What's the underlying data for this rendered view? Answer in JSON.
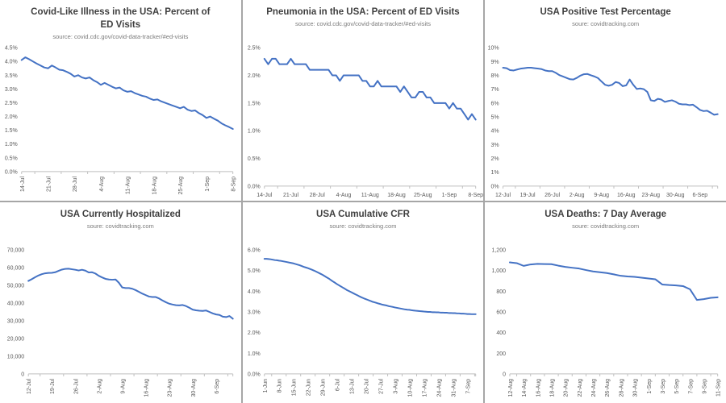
{
  "theme": {
    "line_color": "#4472C4",
    "axis_color": "#BFBFBF",
    "tick_text_color": "#595959",
    "title_color": "#3F3F3F",
    "source_color": "#7A7A7A",
    "divider_color": "#A6A6A6",
    "background": "#FFFFFF"
  },
  "chart_data": [
    {
      "type": "line",
      "title": "Covid-Like Illness in the USA: Percent of ED Visits",
      "source": "source: covid.cdc.gov/covid-data-tracker/#ed-visits",
      "x_ticks": [
        "14-Jul",
        "21-Jul",
        "28-Jul",
        "4-Aug",
        "11-Aug",
        "18-Aug",
        "25-Aug",
        "1-Sep",
        "8-Sep"
      ],
      "x_step": 7,
      "x_rotated": true,
      "y_ticks": [
        "0.0%",
        "0.5%",
        "1.0%",
        "1.5%",
        "2.0%",
        "2.5%",
        "3.0%",
        "3.5%",
        "4.0%",
        "4.5%"
      ],
      "ylim": [
        0,
        4.5
      ],
      "values": [
        4.05,
        4.15,
        4.08,
        4.0,
        3.92,
        3.85,
        3.78,
        3.75,
        3.85,
        3.78,
        3.7,
        3.68,
        3.62,
        3.55,
        3.45,
        3.5,
        3.42,
        3.38,
        3.42,
        3.32,
        3.25,
        3.15,
        3.22,
        3.15,
        3.08,
        3.02,
        3.05,
        2.95,
        2.9,
        2.92,
        2.85,
        2.8,
        2.75,
        2.72,
        2.65,
        2.6,
        2.62,
        2.55,
        2.5,
        2.45,
        2.4,
        2.35,
        2.3,
        2.35,
        2.25,
        2.2,
        2.22,
        2.12,
        2.05,
        1.95,
        2.0,
        1.92,
        1.85,
        1.75,
        1.68,
        1.62,
        1.55
      ]
    },
    {
      "type": "line",
      "title": "Pneumonia in the USA: Percent of ED Visits",
      "source": "source: covid.cdc.gov/covid-data-tracker/#ed-visits",
      "x_ticks": [
        "14-Jul",
        "21-Jul",
        "28-Jul",
        "4-Aug",
        "11-Aug",
        "18-Aug",
        "25-Aug",
        "1-Sep",
        "8-Sep"
      ],
      "x_step": 7,
      "x_rotated": false,
      "y_ticks": [
        "0.0%",
        "0.5%",
        "1.0%",
        "1.5%",
        "2.0%",
        "2.5%"
      ],
      "ylim": [
        0,
        2.5
      ],
      "values": [
        2.3,
        2.2,
        2.3,
        2.3,
        2.2,
        2.2,
        2.2,
        2.3,
        2.2,
        2.2,
        2.2,
        2.2,
        2.1,
        2.1,
        2.1,
        2.1,
        2.1,
        2.1,
        2.0,
        2.0,
        1.9,
        2.0,
        2.0,
        2.0,
        2.0,
        2.0,
        1.9,
        1.9,
        1.8,
        1.8,
        1.9,
        1.8,
        1.8,
        1.8,
        1.8,
        1.8,
        1.7,
        1.8,
        1.7,
        1.6,
        1.6,
        1.7,
        1.7,
        1.6,
        1.6,
        1.5,
        1.5,
        1.5,
        1.5,
        1.4,
        1.5,
        1.4,
        1.4,
        1.3,
        1.2,
        1.3,
        1.2
      ]
    },
    {
      "type": "line",
      "title": "USA Positive Test Percentage",
      "source": "soure: covidtracking.com",
      "x_ticks": [
        "12-Jul",
        "19-Jul",
        "26-Jul",
        "2-Aug",
        "9-Aug",
        "16-Aug",
        "23-Aug",
        "30-Aug",
        "6-Sep"
      ],
      "x_step": 7,
      "x_rotated": false,
      "y_ticks": [
        "0%",
        "1%",
        "2%",
        "3%",
        "4%",
        "5%",
        "6%",
        "7%",
        "8%",
        "9%",
        "10%"
      ],
      "ylim": [
        0,
        10
      ],
      "values": [
        8.55,
        8.52,
        8.38,
        8.35,
        8.42,
        8.48,
        8.52,
        8.55,
        8.55,
        8.52,
        8.48,
        8.45,
        8.35,
        8.3,
        8.3,
        8.18,
        8.02,
        7.92,
        7.82,
        7.72,
        7.7,
        7.82,
        7.98,
        8.08,
        8.1,
        8.0,
        7.92,
        7.8,
        7.55,
        7.32,
        7.25,
        7.32,
        7.52,
        7.45,
        7.22,
        7.28,
        7.7,
        7.32,
        7.02,
        7.05,
        7.0,
        6.8,
        6.2,
        6.15,
        6.3,
        6.25,
        6.08,
        6.15,
        6.2,
        6.1,
        5.95,
        5.9,
        5.9,
        5.85,
        5.88,
        5.7,
        5.5,
        5.42,
        5.44,
        5.3,
        5.15,
        5.2
      ]
    },
    {
      "type": "line",
      "title": "USA Currently Hospitalized",
      "source": "soure: covidtracking.com",
      "x_ticks": [
        "12-Jul",
        "19-Jul",
        "26-Jul",
        "2-Aug",
        "9-Aug",
        "16-Aug",
        "23-Aug",
        "30-Aug",
        "6-Sep"
      ],
      "x_step": 7,
      "x_rotated": true,
      "y_ticks": [
        "0",
        "10,000",
        "20,000",
        "30,000",
        "40,000",
        "50,000",
        "60,000",
        "70,000"
      ],
      "ylim": [
        0,
        70000
      ],
      "values": [
        52500,
        53500,
        54600,
        55600,
        56300,
        56800,
        57000,
        57100,
        57400,
        58200,
        58900,
        59300,
        59400,
        59100,
        58800,
        58400,
        58800,
        58300,
        57300,
        57400,
        56700,
        55400,
        54500,
        53700,
        53300,
        53200,
        53300,
        51500,
        48800,
        48500,
        48500,
        48100,
        47300,
        46300,
        45300,
        44500,
        43700,
        43400,
        43400,
        42600,
        41500,
        40500,
        39700,
        39200,
        38800,
        38700,
        38900,
        38300,
        37400,
        36300,
        35900,
        35700,
        35600,
        35800,
        35000,
        34200,
        33600,
        33300,
        32300,
        32100,
        32700,
        31200
      ]
    },
    {
      "type": "line",
      "title": "USA Cumulative CFR",
      "source": "soure: covidtracking.com",
      "x_ticks": [
        "1-Jun",
        "8-Jun",
        "15-Jun",
        "22-Jun",
        "29-Jun",
        "6-Jul",
        "13-Jul",
        "20-Jul",
        "27-Jul",
        "3-Aug",
        "10-Aug",
        "17-Aug",
        "24-Aug",
        "31-Aug",
        "7-Sep"
      ],
      "x_step": 7,
      "x_rotated": true,
      "y_ticks": [
        "0.0%",
        "1.0%",
        "2.0%",
        "3.0%",
        "4.0%",
        "5.0%",
        "6.0%"
      ],
      "ylim": [
        0,
        6
      ],
      "values": [
        5.57,
        5.57,
        5.56,
        5.55,
        5.53,
        5.51,
        5.5,
        5.48,
        5.47,
        5.45,
        5.43,
        5.41,
        5.39,
        5.37,
        5.35,
        5.32,
        5.29,
        5.26,
        5.22,
        5.18,
        5.15,
        5.12,
        5.08,
        5.04,
        5.0,
        4.95,
        4.9,
        4.85,
        4.8,
        4.74,
        4.68,
        4.62,
        4.55,
        4.48,
        4.42,
        4.35,
        4.29,
        4.23,
        4.17,
        4.11,
        4.05,
        4.0,
        3.95,
        3.9,
        3.85,
        3.8,
        3.75,
        3.7,
        3.66,
        3.62,
        3.58,
        3.54,
        3.5,
        3.47,
        3.44,
        3.41,
        3.38,
        3.35,
        3.33,
        3.31,
        3.28,
        3.26,
        3.24,
        3.22,
        3.2,
        3.18,
        3.16,
        3.14,
        3.12,
        3.11,
        3.1,
        3.08,
        3.07,
        3.06,
        3.05,
        3.04,
        3.03,
        3.02,
        3.01,
        3.0,
        3.0,
        2.99,
        2.99,
        2.98,
        2.98,
        2.97,
        2.97,
        2.96,
        2.96,
        2.95,
        2.95,
        2.94,
        2.94,
        2.93,
        2.93,
        2.92,
        2.92,
        2.91,
        2.9,
        2.9,
        2.89,
        2.89,
        2.89
      ]
    },
    {
      "type": "line",
      "title": "USA Deaths: 7 Day Average",
      "source": "soure: covidtracking.com",
      "x_ticks": [
        "12-Aug",
        "14-Aug",
        "16-Aug",
        "18-Aug",
        "20-Aug",
        "22-Aug",
        "24-Aug",
        "26-Aug",
        "28-Aug",
        "30-Aug",
        "1-Sep",
        "3-Sep",
        "5-Sep",
        "7-Sep",
        "9-Sep",
        "11-Sep"
      ],
      "x_step": 2,
      "x_rotated": true,
      "y_ticks": [
        "0",
        "200",
        "400",
        "600",
        "800",
        "1,000",
        "1,200"
      ],
      "ylim": [
        0,
        1200
      ],
      "values": [
        1080,
        1072,
        1046,
        1060,
        1065,
        1064,
        1062,
        1048,
        1036,
        1028,
        1020,
        1005,
        992,
        984,
        976,
        964,
        950,
        944,
        940,
        932,
        924,
        916,
        866,
        860,
        856,
        850,
        820,
        716,
        724,
        736,
        742
      ]
    }
  ]
}
